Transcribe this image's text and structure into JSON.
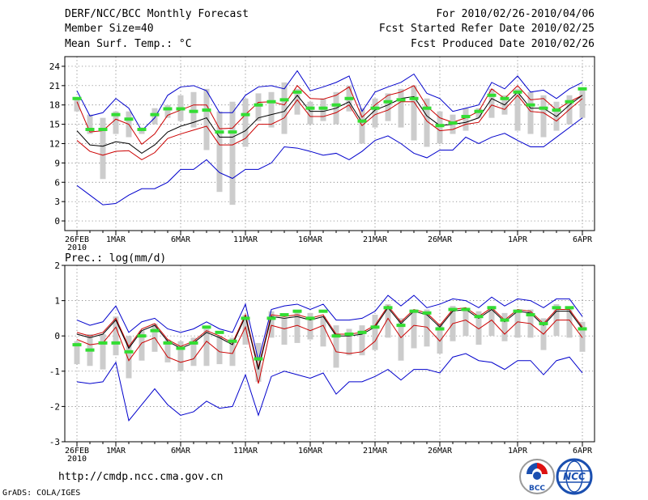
{
  "header": {
    "title": "DERF/NCC/BCC Monthly Forecast",
    "member_size": "Member Size=40",
    "variable": "Mean Surf. Temp.: °C",
    "forecast_range": "For 2010/02/26-2010/04/06",
    "started_refer": "Fcst Started Refer Date 2010/02/25",
    "produced": "Fcst Produced Date 2010/02/26"
  },
  "footer": {
    "url": "http://cmdp.ncc.cma.gov.cn",
    "credit": "GrADS: COLA/IGES",
    "logo1_text": "BCC",
    "logo2_text": "NCC"
  },
  "colors": {
    "outer": "#0000cc",
    "inner": "#cc0000",
    "mean": "#000000",
    "bar": "#cccccc",
    "mark": "#33dd33"
  },
  "chart_data": [
    {
      "type": "line",
      "title": "Mean Surf. Temp.: °C",
      "x_ticks": [
        "26FEB\n2010",
        "1MAR",
        "6MAR",
        "11MAR",
        "16MAR",
        "21MAR",
        "26MAR",
        "1APR",
        "6APR"
      ],
      "x_tick_days": [
        0,
        3,
        8,
        13,
        18,
        23,
        28,
        34,
        39
      ],
      "ylim": [
        -1.5,
        25.5
      ],
      "y_ticks": [
        0,
        3,
        6,
        9,
        12,
        15,
        18,
        21,
        24
      ],
      "series": [
        {
          "name": "max",
          "role": "outer",
          "values": [
            20.2,
            16.3,
            16.8,
            19.0,
            17.5,
            14.0,
            16.0,
            19.5,
            20.8,
            21.0,
            20.2,
            16.8,
            16.8,
            19.5,
            20.8,
            21.0,
            20.5,
            23.3,
            20.2,
            20.8,
            21.5,
            22.5,
            17.0,
            20.0,
            20.8,
            21.5,
            22.8,
            19.8,
            19.0,
            17.0,
            17.5,
            18.0,
            21.5,
            20.5,
            22.5,
            20.0,
            20.3,
            19.0,
            20.5,
            21.5
          ]
        },
        {
          "name": "upper",
          "role": "inner",
          "values": [
            18.5,
            13.8,
            14.0,
            15.8,
            15.0,
            11.9,
            13.5,
            16.4,
            17.2,
            18.0,
            18.0,
            14.3,
            14.4,
            16.5,
            18.4,
            18.5,
            18.0,
            21.0,
            19.0,
            18.9,
            19.5,
            20.8,
            16.1,
            18.0,
            19.5,
            20.0,
            21.0,
            17.8,
            16.0,
            15.3,
            16.0,
            17.0,
            20.5,
            19.0,
            21.0,
            18.8,
            19.0,
            17.2,
            18.5,
            19.5
          ]
        },
        {
          "name": "mean",
          "role": "mean",
          "values": [
            14.0,
            11.8,
            11.6,
            12.3,
            12.0,
            10.5,
            11.8,
            13.8,
            14.7,
            15.3,
            16.0,
            13.0,
            13.0,
            14.0,
            16.0,
            16.5,
            17.0,
            19.5,
            17.0,
            17.0,
            17.5,
            18.5,
            15.3,
            17.2,
            18.0,
            19.0,
            19.3,
            16.3,
            14.8,
            15.0,
            15.3,
            16.0,
            19.0,
            18.0,
            20.0,
            17.5,
            17.5,
            16.2,
            18.0,
            19.5
          ]
        },
        {
          "name": "lower",
          "role": "inner",
          "values": [
            12.5,
            10.8,
            10.2,
            10.8,
            10.9,
            9.5,
            10.6,
            12.8,
            13.5,
            14.1,
            14.7,
            11.8,
            11.8,
            12.8,
            15.0,
            15.0,
            16.0,
            18.8,
            16.2,
            16.2,
            16.8,
            18.0,
            14.8,
            16.5,
            17.2,
            18.5,
            18.5,
            15.5,
            14.0,
            14.2,
            15.0,
            15.3,
            18.0,
            17.3,
            19.5,
            17.0,
            16.8,
            15.5,
            17.3,
            19.0
          ]
        },
        {
          "name": "min",
          "role": "outer",
          "values": [
            5.5,
            4.0,
            2.5,
            2.7,
            4.0,
            5.0,
            5.0,
            6.0,
            8.0,
            8.0,
            9.5,
            7.5,
            6.6,
            8.0,
            8.0,
            9.0,
            11.5,
            11.3,
            10.8,
            10.2,
            10.5,
            9.5,
            10.8,
            12.5,
            13.2,
            12.0,
            10.5,
            9.8,
            11.0,
            11.0,
            13.0,
            12.0,
            13.0,
            13.6,
            12.5,
            11.5,
            11.5,
            13.0,
            14.5,
            16.0
          ]
        },
        {
          "name": "bar_top",
          "role": "bar",
          "values": [
            19.2,
            16.5,
            16.0,
            17.0,
            17.0,
            14.5,
            17.5,
            18.0,
            19.5,
            20.0,
            20.5,
            17.0,
            18.5,
            19.0,
            19.8,
            20.0,
            21.5,
            20.5,
            18.5,
            19.0,
            20.0,
            21.0,
            17.5,
            19.0,
            19.8,
            20.5,
            21.0,
            19.0,
            17.0,
            16.5,
            17.5,
            17.5,
            20.5,
            19.5,
            20.5,
            20.0,
            19.5,
            18.5,
            19.5,
            20.5
          ]
        },
        {
          "name": "bar_bottom",
          "role": "bar",
          "values": [
            17.0,
            13.5,
            6.5,
            13.5,
            13.0,
            13.5,
            15.0,
            16.0,
            15.5,
            14.5,
            11.0,
            4.5,
            2.5,
            11.5,
            15.5,
            14.5,
            13.5,
            16.5,
            15.0,
            15.5,
            15.0,
            17.0,
            12.0,
            14.5,
            15.5,
            14.5,
            12.5,
            11.5,
            12.0,
            13.5,
            14.0,
            16.0,
            16.0,
            16.5,
            14.0,
            13.5,
            13.0,
            14.0,
            15.0,
            16.0
          ]
        },
        {
          "name": "observed_marker",
          "role": "mark",
          "values": [
            19.0,
            14.2,
            14.2,
            16.5,
            15.8,
            14.2,
            16.5,
            17.4,
            17.4,
            17.0,
            17.2,
            13.8,
            13.8,
            16.5,
            18.0,
            18.5,
            18.8,
            20.0,
            17.5,
            17.5,
            18.0,
            19.0,
            15.5,
            17.5,
            18.5,
            18.8,
            19.0,
            17.5,
            14.8,
            15.2,
            16.2,
            17.0,
            19.5,
            19.0,
            20.0,
            18.0,
            17.5,
            17.2,
            18.5,
            20.5
          ]
        }
      ]
    },
    {
      "type": "line",
      "title": "Prec.: log(mm/d)",
      "x_ticks": [
        "26FEB\n2010",
        "1MAR",
        "6MAR",
        "11MAR",
        "16MAR",
        "21MAR",
        "26MAR",
        "1APR",
        "6APR"
      ],
      "x_tick_days": [
        0,
        3,
        8,
        13,
        18,
        23,
        28,
        34,
        39
      ],
      "ylim": [
        -3,
        2
      ],
      "y_ticks": [
        -3,
        -2,
        -1,
        0,
        1,
        2
      ],
      "series": [
        {
          "name": "max",
          "role": "outer",
          "values": [
            0.45,
            0.3,
            0.4,
            0.85,
            0.1,
            0.4,
            0.5,
            0.2,
            0.1,
            0.2,
            0.4,
            0.2,
            0.1,
            0.9,
            -0.7,
            0.75,
            0.85,
            0.9,
            0.75,
            0.9,
            0.45,
            0.45,
            0.5,
            0.7,
            1.15,
            0.85,
            1.15,
            0.8,
            0.9,
            1.05,
            1.0,
            0.8,
            1.1,
            0.85,
            1.05,
            1.0,
            0.8,
            1.05,
            1.05,
            0.55
          ]
        },
        {
          "name": "upper",
          "role": "inner",
          "values": [
            0.1,
            0.0,
            0.1,
            0.5,
            -0.3,
            0.2,
            0.35,
            -0.1,
            -0.3,
            -0.15,
            0.15,
            0.0,
            -0.2,
            0.6,
            -0.9,
            0.6,
            0.55,
            0.6,
            0.5,
            0.6,
            0.05,
            0.05,
            0.1,
            0.3,
            0.85,
            0.4,
            0.75,
            0.65,
            0.3,
            0.75,
            0.8,
            0.55,
            0.8,
            0.45,
            0.75,
            0.7,
            0.35,
            0.75,
            0.75,
            0.25
          ]
        },
        {
          "name": "mean",
          "role": "mean",
          "values": [
            0.05,
            -0.05,
            0.05,
            0.45,
            -0.35,
            0.15,
            0.3,
            -0.15,
            -0.35,
            -0.2,
            0.1,
            -0.05,
            -0.25,
            0.55,
            -0.95,
            0.55,
            0.5,
            0.55,
            0.45,
            0.55,
            0.0,
            0.0,
            0.05,
            0.25,
            0.8,
            0.35,
            0.7,
            0.6,
            0.25,
            0.7,
            0.75,
            0.5,
            0.75,
            0.4,
            0.7,
            0.65,
            0.3,
            0.7,
            0.7,
            0.2
          ]
        },
        {
          "name": "lower",
          "role": "inner",
          "values": [
            -0.1,
            -0.25,
            -0.2,
            0.25,
            -0.7,
            -0.2,
            -0.05,
            -0.6,
            -0.75,
            -0.65,
            -0.15,
            -0.45,
            -0.5,
            0.25,
            -1.35,
            0.3,
            0.2,
            0.3,
            0.15,
            0.3,
            -0.45,
            -0.5,
            -0.45,
            -0.15,
            0.5,
            -0.05,
            0.3,
            0.25,
            -0.15,
            0.35,
            0.45,
            0.2,
            0.45,
            0.05,
            0.4,
            0.35,
            0.05,
            0.45,
            0.45,
            -0.05
          ]
        },
        {
          "name": "min",
          "role": "outer",
          "values": [
            -1.3,
            -1.35,
            -1.3,
            -0.75,
            -2.4,
            -1.95,
            -1.5,
            -1.95,
            -2.25,
            -2.15,
            -1.85,
            -2.05,
            -2.0,
            -1.1,
            -2.25,
            -1.15,
            -1.0,
            -1.1,
            -1.2,
            -1.05,
            -1.65,
            -1.3,
            -1.3,
            -1.15,
            -0.95,
            -1.25,
            -0.95,
            -0.95,
            -1.05,
            -0.6,
            -0.5,
            -0.7,
            -0.75,
            -0.95,
            -0.7,
            -0.7,
            -1.1,
            -0.7,
            -0.6,
            -1.05
          ]
        },
        {
          "name": "bar_top",
          "role": "bar",
          "values": [
            -0.15,
            0.05,
            0.05,
            0.55,
            0.0,
            0.15,
            0.35,
            -0.1,
            -0.15,
            -0.05,
            0.2,
            0.0,
            -0.05,
            0.6,
            -0.2,
            0.7,
            0.5,
            0.7,
            0.65,
            0.55,
            0.3,
            0.2,
            0.3,
            0.6,
            0.9,
            0.5,
            0.75,
            0.75,
            0.35,
            0.85,
            0.8,
            0.7,
            0.85,
            0.65,
            0.75,
            0.75,
            0.5,
            0.9,
            0.8,
            0.4
          ]
        },
        {
          "name": "bar_bottom",
          "role": "bar",
          "values": [
            -0.8,
            -0.85,
            -0.95,
            -0.55,
            -1.2,
            -0.7,
            -0.45,
            -0.75,
            -1.0,
            -0.85,
            -0.85,
            -0.8,
            -0.85,
            -0.25,
            -1.3,
            -0.05,
            -0.25,
            -0.2,
            -0.1,
            -0.3,
            -0.9,
            -0.55,
            -0.55,
            -0.4,
            -0.05,
            -0.7,
            -0.35,
            -0.3,
            -0.5,
            -0.15,
            0.0,
            -0.25,
            0.0,
            -0.15,
            -0.05,
            -0.05,
            -0.4,
            0.0,
            -0.05,
            -0.45
          ]
        },
        {
          "name": "observed_marker",
          "role": "mark",
          "values": [
            -0.25,
            -0.4,
            -0.2,
            -0.2,
            -0.45,
            0.0,
            0.15,
            -0.2,
            -0.35,
            -0.2,
            0.25,
            0.1,
            -0.15,
            0.5,
            -0.65,
            0.5,
            0.6,
            0.7,
            0.5,
            0.7,
            0.0,
            0.05,
            0.1,
            0.25,
            0.8,
            0.3,
            0.7,
            0.65,
            0.2,
            0.75,
            0.75,
            0.55,
            0.8,
            0.45,
            0.7,
            0.6,
            0.35,
            0.8,
            0.8,
            0.2
          ]
        }
      ]
    }
  ]
}
